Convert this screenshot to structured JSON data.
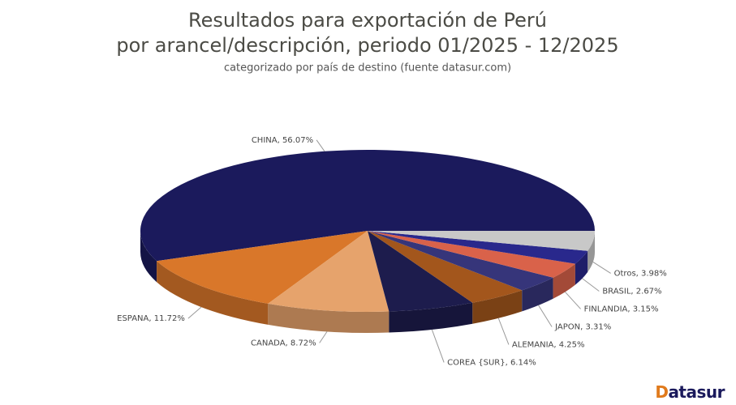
{
  "chart_data": {
    "type": "pie3d",
    "title": [
      "Resultados para exportación de Perú",
      "por arancel/descripción, periodo 01/2025 - 12/2025"
    ],
    "subtitle": "categorizado por país de destino (fuente datasur.com)",
    "values": [
      56.07,
      11.72,
      8.72,
      6.14,
      4.25,
      3.31,
      3.15,
      2.67,
      3.98
    ],
    "value_labels": [
      "CHINA, 56.07%",
      "ESPANA, 11.72%",
      "CANADA, 8.72%",
      "COREA {SUR}, 6.14%",
      "ALEMANIA, 4.25%",
      "JAPON, 3.31%",
      "FINLANDIA, 3.15%",
      "BRASIL, 2.67%",
      "Otros, 3.98%"
    ],
    "colors": [
      "#1b1a5c",
      "#d9772a",
      "#e6a36c",
      "#1d1c4d",
      "#a3561c",
      "#36357a",
      "#d9624a",
      "#29288c",
      "#c8c8c8"
    ]
  },
  "logo": "Datasur"
}
